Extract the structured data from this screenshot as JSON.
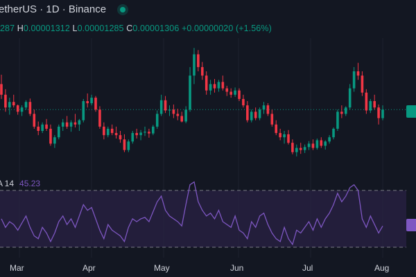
{
  "header": {
    "title": "etherUS · 1D · Binance",
    "status_icon": "live-dot-icon"
  },
  "ohlc": {
    "open_label": "287",
    "high_key": "H",
    "high_value": "0.00001312",
    "low_key": "L",
    "low_value": "0.00001285",
    "close_key": "C",
    "close_value": "0.00001306",
    "change": "+0.00000020 (+1.56%)"
  },
  "rsi": {
    "name": "A 14",
    "value": "45.23",
    "upper_band": 70,
    "lower_band": 30
  },
  "x_axis": {
    "months": [
      "Mar",
      "Apr",
      "May",
      "Jun",
      "Jul",
      "Aug"
    ]
  },
  "colors": {
    "background": "#131722",
    "up": "#089981",
    "down": "#f23645",
    "rsi_line": "#7e57c2",
    "rsi_band_fill": "#2a2144"
  },
  "chart_data": {
    "type": "candlestick",
    "candles": [
      [
        1.0,
        1.022,
        0.965,
        0.975
      ],
      [
        0.975,
        0.988,
        0.935,
        0.945
      ],
      [
        0.945,
        0.968,
        0.928,
        0.958
      ],
      [
        0.958,
        0.975,
        0.945,
        0.95
      ],
      [
        0.95,
        0.952,
        0.928,
        0.935
      ],
      [
        0.935,
        0.95,
        0.925,
        0.945
      ],
      [
        0.945,
        0.962,
        0.94,
        0.958
      ],
      [
        0.958,
        0.966,
        0.925,
        0.93
      ],
      [
        0.93,
        0.94,
        0.895,
        0.9
      ],
      [
        0.9,
        0.912,
        0.88,
        0.89
      ],
      [
        0.89,
        0.91,
        0.885,
        0.905
      ],
      [
        0.905,
        0.918,
        0.89,
        0.895
      ],
      [
        0.895,
        0.905,
        0.855,
        0.86
      ],
      [
        0.86,
        0.88,
        0.85,
        0.875
      ],
      [
        0.875,
        0.905,
        0.87,
        0.9
      ],
      [
        0.9,
        0.918,
        0.89,
        0.91
      ],
      [
        0.91,
        0.925,
        0.895,
        0.9
      ],
      [
        0.9,
        0.915,
        0.888,
        0.91
      ],
      [
        0.91,
        0.93,
        0.898,
        0.905
      ],
      [
        0.905,
        0.918,
        0.89,
        0.915
      ],
      [
        0.915,
        0.965,
        0.91,
        0.96
      ],
      [
        0.96,
        0.978,
        0.945,
        0.955
      ],
      [
        0.955,
        0.975,
        0.95,
        0.968
      ],
      [
        0.968,
        0.972,
        0.935,
        0.94
      ],
      [
        0.94,
        0.948,
        0.895,
        0.9
      ],
      [
        0.9,
        0.91,
        0.87,
        0.88
      ],
      [
        0.88,
        0.9,
        0.875,
        0.895
      ],
      [
        0.895,
        0.905,
        0.88,
        0.885
      ],
      [
        0.885,
        0.9,
        0.872,
        0.88
      ],
      [
        0.88,
        0.89,
        0.862,
        0.87
      ],
      [
        0.87,
        0.882,
        0.84,
        0.845
      ],
      [
        0.845,
        0.87,
        0.84,
        0.865
      ],
      [
        0.865,
        0.89,
        0.86,
        0.885
      ],
      [
        0.885,
        0.895,
        0.872,
        0.88
      ],
      [
        0.88,
        0.892,
        0.868,
        0.886
      ],
      [
        0.886,
        0.9,
        0.878,
        0.888
      ],
      [
        0.888,
        0.895,
        0.874,
        0.884
      ],
      [
        0.884,
        0.904,
        0.88,
        0.9
      ],
      [
        0.9,
        0.938,
        0.895,
        0.93
      ],
      [
        0.93,
        0.975,
        0.925,
        0.962
      ],
      [
        0.962,
        0.972,
        0.932,
        0.938
      ],
      [
        0.938,
        0.95,
        0.925,
        0.94
      ],
      [
        0.94,
        0.952,
        0.92,
        0.93
      ],
      [
        0.93,
        0.942,
        0.915,
        0.925
      ],
      [
        0.925,
        0.935,
        0.91,
        0.912
      ],
      [
        0.912,
        0.948,
        0.908,
        0.94
      ],
      [
        0.94,
        1.04,
        0.935,
        1.02
      ],
      [
        1.02,
        1.085,
        1.0,
        1.07
      ],
      [
        1.07,
        1.08,
        1.03,
        1.04
      ],
      [
        1.04,
        1.052,
        1.01,
        1.02
      ],
      [
        1.02,
        1.03,
        0.975,
        0.985
      ],
      [
        0.985,
        1.01,
        0.975,
        1.0
      ],
      [
        1.0,
        1.012,
        0.98,
        0.99
      ],
      [
        0.99,
        1.01,
        0.982,
        1.005
      ],
      [
        1.005,
        1.02,
        0.985,
        0.99
      ],
      [
        0.99,
        0.996,
        0.972,
        0.982
      ],
      [
        0.982,
        0.99,
        0.968,
        0.975
      ],
      [
        0.975,
        0.992,
        0.97,
        0.985
      ],
      [
        0.985,
        0.99,
        0.96,
        0.965
      ],
      [
        0.965,
        0.975,
        0.945,
        0.95
      ],
      [
        0.95,
        0.96,
        0.91,
        0.915
      ],
      [
        0.915,
        0.94,
        0.91,
        0.935
      ],
      [
        0.935,
        0.945,
        0.915,
        0.92
      ],
      [
        0.92,
        0.945,
        0.915,
        0.94
      ],
      [
        0.94,
        0.958,
        0.93,
        0.95
      ],
      [
        0.95,
        0.955,
        0.925,
        0.93
      ],
      [
        0.93,
        0.94,
        0.9,
        0.905
      ],
      [
        0.905,
        0.915,
        0.88,
        0.885
      ],
      [
        0.885,
        0.895,
        0.868,
        0.875
      ],
      [
        0.875,
        0.89,
        0.86,
        0.882
      ],
      [
        0.882,
        0.892,
        0.858,
        0.862
      ],
      [
        0.862,
        0.87,
        0.835,
        0.84
      ],
      [
        0.84,
        0.858,
        0.83,
        0.85
      ],
      [
        0.85,
        0.862,
        0.836,
        0.845
      ],
      [
        0.845,
        0.858,
        0.838,
        0.852
      ],
      [
        0.852,
        0.866,
        0.845,
        0.86
      ],
      [
        0.86,
        0.87,
        0.845,
        0.85
      ],
      [
        0.85,
        0.872,
        0.846,
        0.868
      ],
      [
        0.868,
        0.875,
        0.85,
        0.855
      ],
      [
        0.855,
        0.868,
        0.846,
        0.865
      ],
      [
        0.865,
        0.88,
        0.86,
        0.875
      ],
      [
        0.875,
        0.898,
        0.87,
        0.895
      ],
      [
        0.895,
        0.94,
        0.89,
        0.935
      ],
      [
        0.935,
        0.95,
        0.92,
        0.93
      ],
      [
        0.93,
        0.948,
        0.925,
        0.945
      ],
      [
        0.945,
        1.0,
        0.94,
        0.99
      ],
      [
        0.99,
        1.04,
        0.982,
        1.03
      ],
      [
        1.03,
        1.05,
        1.01,
        1.02
      ],
      [
        1.02,
        1.03,
        0.972,
        0.98
      ],
      [
        0.98,
        0.988,
        0.93,
        0.938
      ],
      [
        0.938,
        0.965,
        0.932,
        0.96
      ],
      [
        0.96,
        0.975,
        0.94,
        0.945
      ],
      [
        0.945,
        0.952,
        0.905,
        0.92
      ],
      [
        0.92,
        0.95,
        0.915,
        0.94
      ]
    ],
    "rsi_values": [
      50,
      44,
      48,
      46,
      42,
      47,
      52,
      44,
      38,
      36,
      44,
      40,
      34,
      40,
      48,
      52,
      46,
      50,
      44,
      52,
      60,
      56,
      58,
      50,
      42,
      36,
      46,
      42,
      40,
      38,
      34,
      44,
      50,
      48,
      50,
      51,
      48,
      55,
      62,
      66,
      56,
      52,
      50,
      48,
      45,
      60,
      74,
      76,
      62,
      56,
      52,
      54,
      50,
      56,
      48,
      46,
      44,
      52,
      42,
      40,
      36,
      48,
      44,
      52,
      54,
      46,
      40,
      36,
      34,
      44,
      36,
      32,
      42,
      40,
      44,
      48,
      42,
      50,
      44,
      50,
      54,
      60,
      68,
      62,
      66,
      72,
      74,
      70,
      50,
      44,
      52,
      46,
      40,
      45
    ],
    "x_tick_labels": [
      "Mar",
      "Apr",
      "May",
      "Jun",
      "Jul",
      "Aug"
    ],
    "last_price_line": 0.94
  }
}
